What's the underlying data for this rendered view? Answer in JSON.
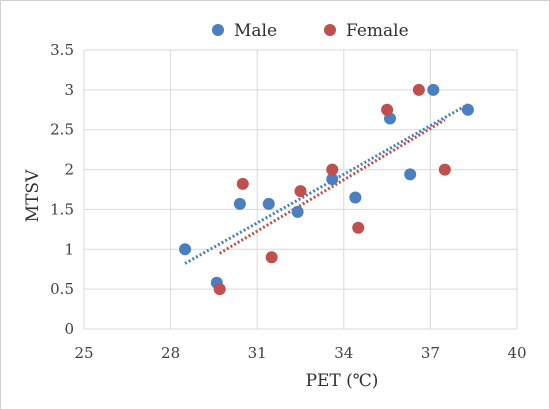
{
  "chart_data": {
    "type": "scatter",
    "xlabel": "PET (℃)",
    "ylabel": "MTSV",
    "xlim": [
      25,
      40
    ],
    "ylim": [
      0,
      3.5
    ],
    "xticks": [
      "25",
      "28",
      "31",
      "34",
      "37",
      "40"
    ],
    "yticks": [
      "0",
      "0.5",
      "1",
      "1.5",
      "2",
      "2.5",
      "3",
      "3.5"
    ],
    "grid": true,
    "legend_position": "top",
    "trendlines": "linear, dotted",
    "series": [
      {
        "name": "Male",
        "color": "#4a7fc1",
        "points": [
          [
            28.5,
            1.0
          ],
          [
            29.6,
            0.58
          ],
          [
            30.4,
            1.57
          ],
          [
            31.4,
            1.57
          ],
          [
            32.4,
            1.47
          ],
          [
            33.6,
            1.88
          ],
          [
            34.4,
            1.65
          ],
          [
            35.6,
            2.64
          ],
          [
            36.3,
            1.94
          ],
          [
            37.1,
            3.0
          ],
          [
            38.3,
            2.75
          ]
        ]
      },
      {
        "name": "Female",
        "color": "#c0504d",
        "points": [
          [
            29.7,
            0.5
          ],
          [
            30.5,
            1.82
          ],
          [
            31.5,
            0.9
          ],
          [
            32.5,
            1.73
          ],
          [
            33.6,
            2.0
          ],
          [
            34.5,
            1.27
          ],
          [
            35.5,
            2.75
          ],
          [
            36.6,
            3.0
          ],
          [
            37.5,
            2.0
          ]
        ]
      }
    ]
  }
}
